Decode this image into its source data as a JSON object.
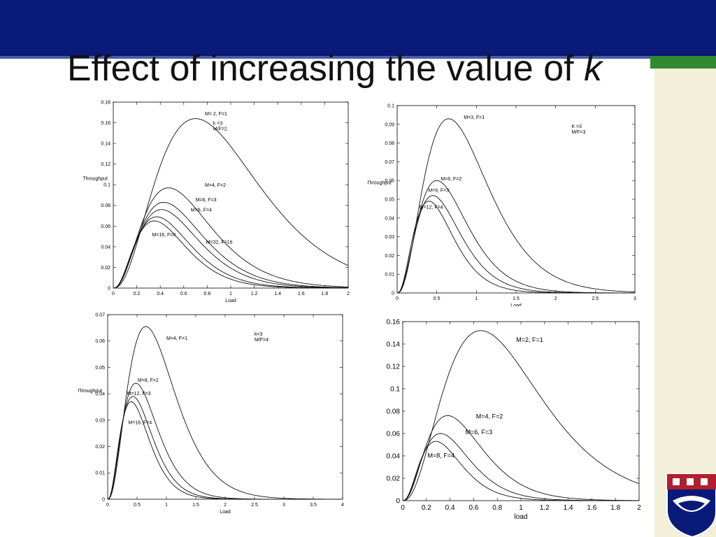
{
  "slide": {
    "title_main": "Effect of increasing the value of",
    "title_var": "k",
    "colors": {
      "header": "#0a1a78",
      "accent": "#2f8a2f",
      "side_panel": "#f3efd9"
    },
    "logo": "university-crest-icon"
  },
  "chart_data": [
    {
      "type": "line",
      "xlabel": "Load",
      "ylabel": "Throughput",
      "xlim": [
        0,
        2
      ],
      "ylim": [
        0,
        0.18
      ],
      "xticks": [
        0,
        0.2,
        0.4,
        0.6,
        0.8,
        1,
        1.2,
        1.4,
        1.6,
        1.8,
        2
      ],
      "yticks": [
        0,
        0.02,
        0.04,
        0.06,
        0.08,
        0.1,
        0.12,
        0.14,
        0.16,
        0.18
      ],
      "annotation": [
        "k =3",
        "M/F=2"
      ],
      "series": [
        {
          "name": "M= 2, F=1",
          "peak_x": 0.7,
          "peak_y": 0.164
        },
        {
          "name": "M=4, F=2",
          "peak_x": 0.47,
          "peak_y": 0.097
        },
        {
          "name": "M=6, F=3",
          "peak_x": 0.43,
          "peak_y": 0.083
        },
        {
          "name": "M=8, F=4",
          "peak_x": 0.41,
          "peak_y": 0.076
        },
        {
          "name": "M=16, F=8",
          "peak_x": 0.37,
          "peak_y": 0.069
        },
        {
          "name": "M=32, F=16",
          "peak_x": 0.35,
          "peak_y": 0.065
        }
      ]
    },
    {
      "type": "line",
      "xlabel": "Load",
      "ylabel": "Throughput",
      "xlim": [
        0,
        3
      ],
      "ylim": [
        0,
        0.1
      ],
      "xticks": [
        0,
        0.5,
        1,
        1.5,
        2,
        2.5,
        3
      ],
      "yticks": [
        0,
        0.01,
        0.02,
        0.03,
        0.04,
        0.05,
        0.06,
        0.07,
        0.08,
        0.09,
        0.1
      ],
      "annotation": [
        "K =3",
        "M/F=3"
      ],
      "series": [
        {
          "name": "M=3, F=1",
          "peak_x": 0.65,
          "peak_y": 0.093
        },
        {
          "name": "M=6, F=2",
          "peak_x": 0.5,
          "peak_y": 0.06
        },
        {
          "name": "M=9, F=3",
          "peak_x": 0.45,
          "peak_y": 0.052
        },
        {
          "name": "M=12, F=4",
          "peak_x": 0.4,
          "peak_y": 0.049
        }
      ]
    },
    {
      "type": "line",
      "xlabel": "Load",
      "ylabel": "Throughput",
      "xlim": [
        0,
        4
      ],
      "ylim": [
        0,
        0.07
      ],
      "xticks": [
        0,
        0.5,
        1,
        1.5,
        2,
        2.5,
        3,
        3.5,
        4
      ],
      "yticks": [
        0,
        0.01,
        0.02,
        0.03,
        0.04,
        0.05,
        0.06,
        0.07
      ],
      "annotation": [
        "k=3",
        "M/F=4"
      ],
      "series": [
        {
          "name": "M=4, F=1",
          "peak_x": 0.65,
          "peak_y": 0.0655
        },
        {
          "name": "M=8, F=2",
          "peak_x": 0.48,
          "peak_y": 0.044
        },
        {
          "name": "M=12, F=3",
          "peak_x": 0.43,
          "peak_y": 0.039
        },
        {
          "name": "M=16, F=4",
          "peak_x": 0.4,
          "peak_y": 0.037
        }
      ]
    },
    {
      "type": "line",
      "xlabel": "load",
      "ylabel": "",
      "xlim": [
        0,
        2
      ],
      "ylim": [
        0,
        0.16
      ],
      "xticks": [
        0,
        0.2,
        0.4,
        0.6,
        0.8,
        1,
        1.2,
        1.4,
        1.6,
        1.8,
        2
      ],
      "yticks": [
        0,
        0.02,
        0.04,
        0.06,
        0.08,
        0.1,
        0.12,
        0.14,
        0.16
      ],
      "annotation": [],
      "series": [
        {
          "name": "M=2, F=1",
          "peak_x": 0.66,
          "peak_y": 0.152
        },
        {
          "name": "M=4, F=2",
          "peak_x": 0.38,
          "peak_y": 0.076
        },
        {
          "name": "M=6, F=3",
          "peak_x": 0.32,
          "peak_y": 0.06
        },
        {
          "name": "M=8, F=4",
          "peak_x": 0.28,
          "peak_y": 0.053
        }
      ]
    }
  ]
}
